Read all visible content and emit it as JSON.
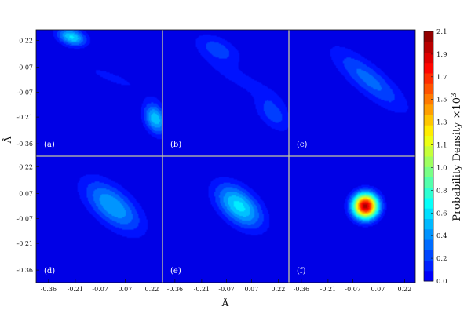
{
  "chart_data": {
    "type": "heatmap",
    "layout": "2x3 grid of panels",
    "xlabel": "Å",
    "ylabel": "Å",
    "xticks": [
      "-0.36",
      "-0.21",
      "-0.07",
      "0.07",
      "0.22"
    ],
    "yticks": [
      "0.22",
      "0.07",
      "-0.07",
      "-0.21",
      "-0.36"
    ],
    "tick_values": [
      -0.36,
      -0.21,
      -0.07,
      0.07,
      0.22
    ],
    "axis_range": [
      -0.43,
      0.28
    ],
    "colormap": "jet",
    "colorbar": {
      "label": "Probability Density ×10",
      "label_exponent": "3",
      "range": [
        0,
        2.1
      ],
      "ticks": [
        "0.0",
        "0.2",
        "0.4",
        "0.6",
        "0.8",
        "1.0",
        "1.1",
        "1.3",
        "1.5",
        "1.7",
        "1.9",
        "2.1"
      ]
    },
    "panels": [
      {
        "label": "(a)",
        "peaks": [
          {
            "x": -0.23,
            "y": 0.24,
            "sx": 0.055,
            "sy": 0.035,
            "rho": -0.3,
            "amp": 0.62
          },
          {
            "x": 0.24,
            "y": -0.22,
            "sx": 0.045,
            "sy": 0.06,
            "rho": -0.3,
            "amp": 0.58
          },
          {
            "x": 0.0,
            "y": 0.01,
            "sx": 0.16,
            "sy": 0.07,
            "rho": -0.85,
            "amp": 0.12
          }
        ]
      },
      {
        "label": "(b)",
        "peaks": [
          {
            "x": -0.12,
            "y": 0.17,
            "sx": 0.09,
            "sy": 0.06,
            "rho": -0.5,
            "amp": 0.26
          },
          {
            "x": 0.19,
            "y": -0.19,
            "sx": 0.07,
            "sy": 0.07,
            "rho": -0.5,
            "amp": 0.26
          },
          {
            "x": 0.03,
            "y": -0.01,
            "sx": 0.15,
            "sy": 0.08,
            "rho": -0.85,
            "amp": 0.14
          }
        ]
      },
      {
        "label": "(c)",
        "peaks": [
          {
            "x": 0.02,
            "y": 0.0,
            "sx": 0.14,
            "sy": 0.12,
            "rho": -0.82,
            "amp": 0.34
          }
        ]
      },
      {
        "label": "(d)",
        "peaks": [
          {
            "x": 0.0,
            "y": 0.0,
            "sx": 0.11,
            "sy": 0.1,
            "rho": -0.6,
            "amp": 0.5
          }
        ]
      },
      {
        "label": "(e)",
        "peaks": [
          {
            "x": 0.0,
            "y": 0.0,
            "sx": 0.09,
            "sy": 0.085,
            "rho": -0.5,
            "amp": 0.64
          }
        ]
      },
      {
        "label": "(f)",
        "peaks": [
          {
            "x": 0.0,
            "y": 0.0,
            "sx": 0.048,
            "sy": 0.048,
            "rho": 0.0,
            "amp": 2.05
          }
        ]
      }
    ]
  }
}
